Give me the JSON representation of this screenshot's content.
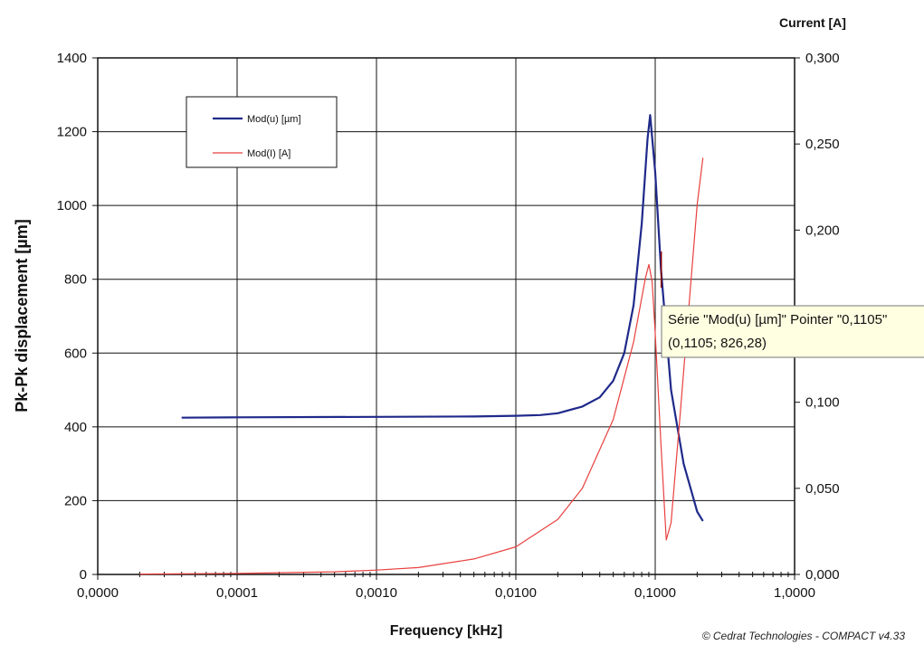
{
  "chart_data": {
    "type": "line",
    "xlabel": "Frequency [kHz]",
    "ylabel": "Pk-Pk displacement  [µm]",
    "y2label": "Current [A]",
    "xscale": "log",
    "xlim": [
      1e-05,
      1
    ],
    "ylim": [
      0,
      1400
    ],
    "y2lim": [
      0,
      0.3
    ],
    "grid": true,
    "legend_position": "top-left",
    "x_ticks": [
      "0,0000",
      "0,0001",
      "0,0010",
      "0,0100",
      "0,1000",
      "1,0000"
    ],
    "y_ticks": [
      "0",
      "200",
      "400",
      "600",
      "800",
      "1000",
      "1200",
      "1400"
    ],
    "y2_ticks": [
      "0,000",
      "0,050",
      "0,100",
      "0,150",
      "0,200",
      "0,250",
      "0,300"
    ],
    "series": [
      {
        "name": "Mod(u) [µm]",
        "axis": "left",
        "color": "#1f2a8a",
        "x": [
          4e-05,
          0.0001,
          0.001,
          0.005,
          0.01,
          0.015,
          0.02,
          0.03,
          0.04,
          0.05,
          0.06,
          0.07,
          0.08,
          0.088,
          0.092,
          0.1,
          0.11,
          0.13,
          0.16,
          0.2,
          0.22
        ],
        "y": [
          425,
          426,
          427,
          428,
          430,
          432,
          437,
          455,
          480,
          525,
          600,
          730,
          950,
          1180,
          1245,
          1090,
          826.28,
          500,
          300,
          170,
          145
        ]
      },
      {
        "name": "Mod(I) [A]",
        "axis": "right",
        "color": "#e8403f",
        "x": [
          2e-05,
          0.0001,
          0.0005,
          0.001,
          0.002,
          0.005,
          0.01,
          0.02,
          0.03,
          0.05,
          0.07,
          0.085,
          0.09,
          0.095,
          0.1,
          0.11,
          0.12,
          0.13,
          0.15,
          0.2,
          0.22
        ],
        "y": [
          0.0002,
          0.0006,
          0.0015,
          0.0025,
          0.004,
          0.009,
          0.016,
          0.032,
          0.05,
          0.09,
          0.135,
          0.172,
          0.18,
          0.17,
          0.14,
          0.075,
          0.02,
          0.03,
          0.09,
          0.215,
          0.242
        ]
      }
    ],
    "tooltip": {
      "line1": "Série \"Mod(u) [µm]\" Pointer \"0,1105\"",
      "line2": "(0,1105; 826,28)",
      "x": 0.1105,
      "y": 826.28
    },
    "copyright": "© Cedrat Technologies - COMPACT v4.33"
  }
}
